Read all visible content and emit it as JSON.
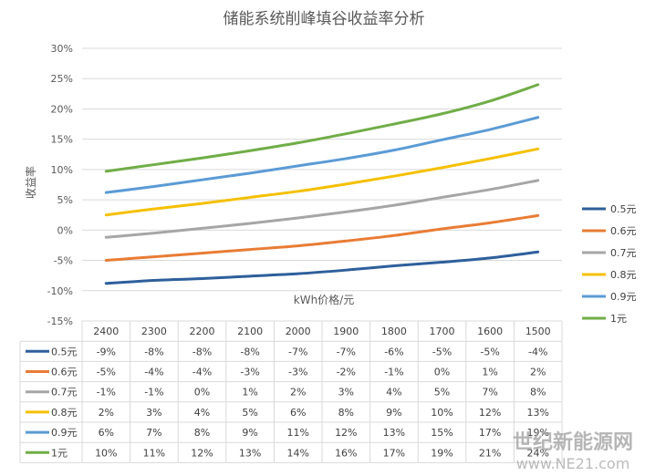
{
  "chart_data": {
    "type": "line",
    "title": "储能系统削峰填谷收益率分析",
    "xlabel": "kWh价格/元",
    "ylabel": "收益率",
    "categories": [
      "2400",
      "2300",
      "2200",
      "2100",
      "2000",
      "1900",
      "1800",
      "1700",
      "1600",
      "1500"
    ],
    "ylim": [
      -15,
      30
    ],
    "yticks": [
      "30%",
      "25%",
      "20%",
      "15%",
      "10%",
      "5%",
      "0%",
      "-5%",
      "-10%",
      "-15%"
    ],
    "grid": true,
    "legend": "right",
    "series": [
      {
        "name": "0.5元",
        "color": "#2e5f9b",
        "values": [
          -8.8,
          -8.3,
          -8.0,
          -7.6,
          -7.2,
          -6.6,
          -5.9,
          -5.3,
          -4.6,
          -3.6
        ],
        "table": [
          "-9%",
          "-8%",
          "-8%",
          "-8%",
          "-7%",
          "-7%",
          "-6%",
          "-5%",
          "-5%",
          "-4%"
        ]
      },
      {
        "name": "0.6元",
        "color": "#e87c35",
        "values": [
          -5.0,
          -4.4,
          -3.8,
          -3.2,
          -2.6,
          -1.8,
          -0.9,
          0.2,
          1.2,
          2.4
        ],
        "table": [
          "-5%",
          "-4%",
          "-4%",
          "-3%",
          "-3%",
          "-2%",
          "-1%",
          "0%",
          "1%",
          "2%"
        ]
      },
      {
        "name": "0.7元",
        "color": "#a6a6a6",
        "values": [
          -1.2,
          -0.5,
          0.3,
          1.1,
          2.0,
          3.0,
          4.1,
          5.4,
          6.7,
          8.2
        ],
        "table": [
          "-1%",
          "-1%",
          "0%",
          "1%",
          "2%",
          "3%",
          "4%",
          "5%",
          "7%",
          "8%"
        ]
      },
      {
        "name": "0.8元",
        "color": "#f5c000",
        "values": [
          2.5,
          3.5,
          4.4,
          5.4,
          6.4,
          7.6,
          8.9,
          10.3,
          11.8,
          13.4
        ],
        "table": [
          "2%",
          "3%",
          "4%",
          "5%",
          "6%",
          "8%",
          "9%",
          "10%",
          "12%",
          "13%"
        ]
      },
      {
        "name": "0.9元",
        "color": "#5b9bd5",
        "values": [
          6.2,
          7.2,
          8.3,
          9.4,
          10.6,
          11.8,
          13.2,
          14.9,
          16.6,
          18.6
        ],
        "table": [
          "6%",
          "7%",
          "8%",
          "9%",
          "11%",
          "12%",
          "13%",
          "15%",
          "17%",
          "19%"
        ]
      },
      {
        "name": "1元",
        "color": "#70ad47",
        "values": [
          9.7,
          10.8,
          11.9,
          13.1,
          14.4,
          15.9,
          17.5,
          19.2,
          21.3,
          24.0
        ],
        "table": [
          "10%",
          "11%",
          "12%",
          "13%",
          "14%",
          "16%",
          "17%",
          "19%",
          "21%",
          "24%"
        ]
      }
    ]
  },
  "watermark": {
    "line1": "世纪新能源网",
    "line2": "www.NE21.com"
  }
}
